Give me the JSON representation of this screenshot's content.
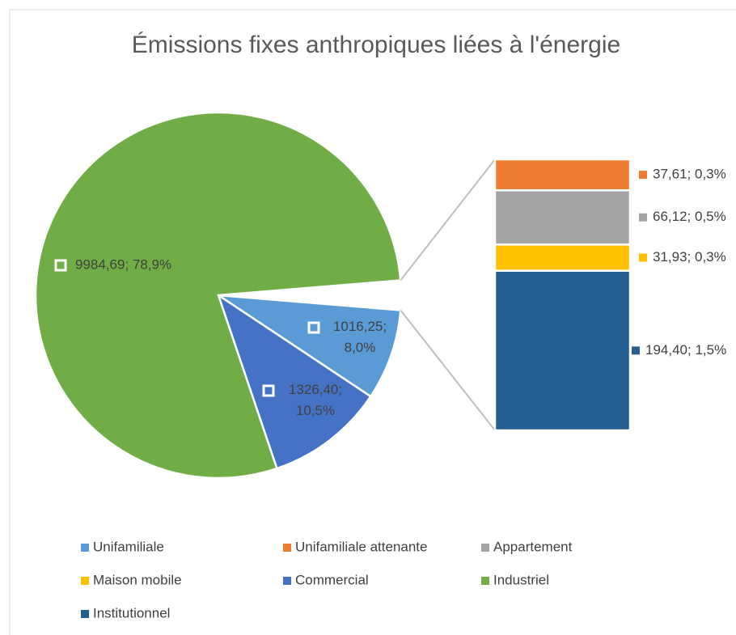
{
  "chart_data": {
    "type": "bar-of-pie",
    "title": "Émissions fixes anthropiques liées à l'énergie",
    "categories": [
      "Unifamiliale",
      "Unifamiliale attenante",
      "Appartement",
      "Maison mobile",
      "Commercial",
      "Industriel",
      "Institutionnel"
    ],
    "values": [
      1016.25,
      37.61,
      66.12,
      31.93,
      1326.4,
      9984.69,
      194.4
    ],
    "value_labels": [
      "1016,25; 8,0%",
      "37,61; 0,3%",
      "66,12; 0,5%",
      "31,93; 0,3%",
      "1326,40; 10,5%",
      "9984,69; 78,9%",
      "194,40; 1,5%"
    ],
    "colors": [
      "#5b9bd5",
      "#ed7d31",
      "#a5a5a5",
      "#ffc000",
      "#4472c4",
      "#70ad47",
      "#255e91"
    ],
    "secondary": [
      1,
      2,
      3,
      6
    ],
    "legend": "bottom"
  }
}
